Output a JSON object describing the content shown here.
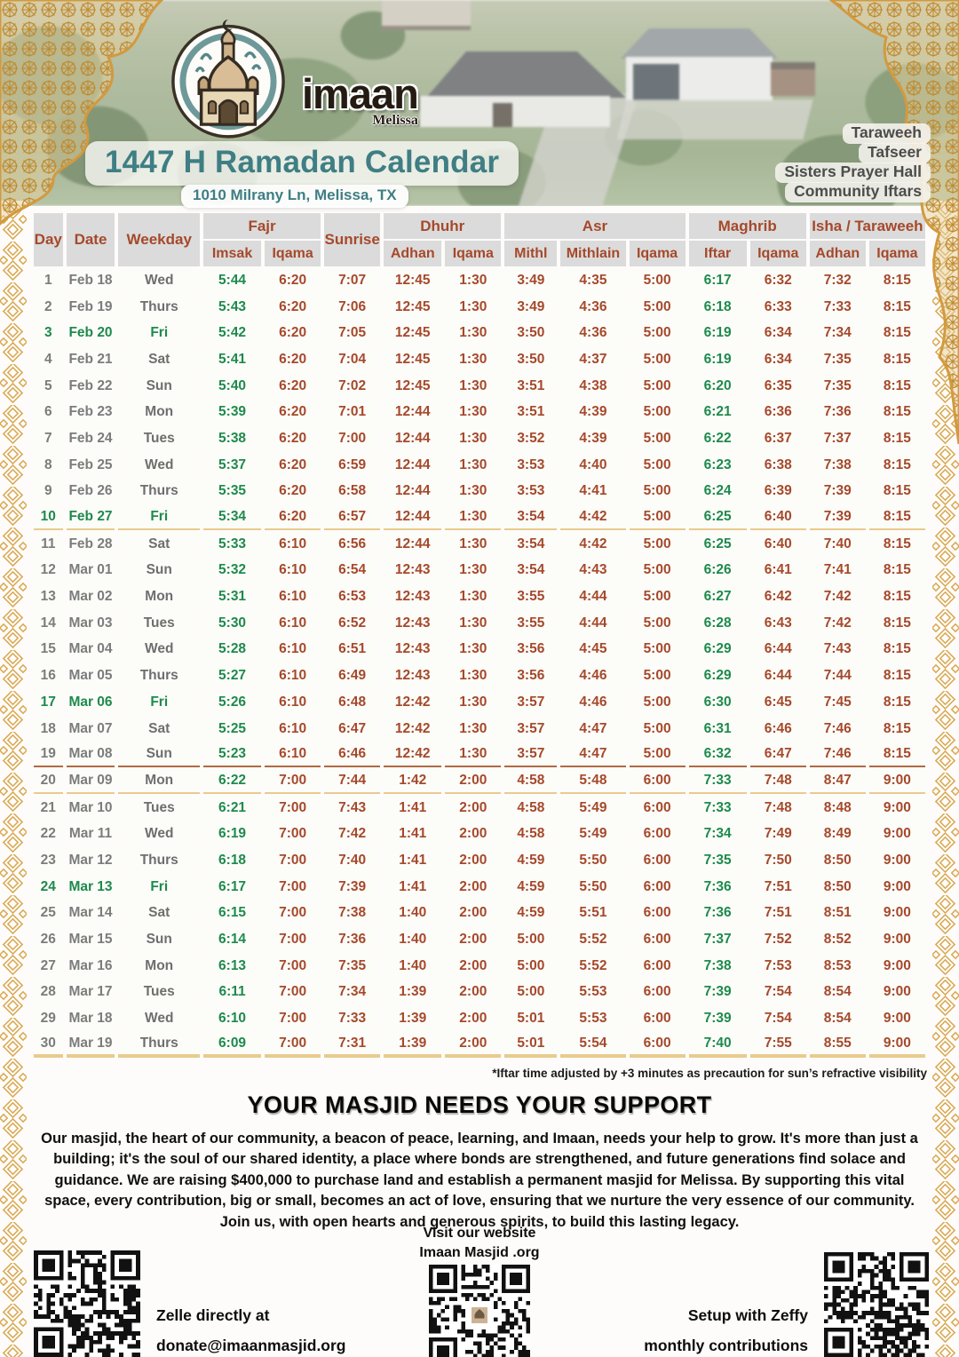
{
  "header": {
    "logo_name": "imaan",
    "logo_sub": "Melissa",
    "title": "1447 H Ramadan Calendar",
    "address": "1010 Milrany Ln, Melissa, TX",
    "tags": [
      "Taraweeh",
      "Tafseer",
      "Sisters Prayer Hall",
      "Community Iftars"
    ]
  },
  "table": {
    "groups": {
      "day": "Day",
      "date": "Date",
      "weekday": "Weekday",
      "fajr": "Fajr",
      "sunrise": "Sunrise",
      "dhuhr": "Dhuhr",
      "asr": "Asr",
      "maghrib": "Maghrib",
      "isha": "Isha / Taraweeh"
    },
    "sub": {
      "imsak": "Imsak",
      "iqama": "Iqama",
      "adhan": "Adhan",
      "mithl": "Mithl",
      "mithlain": "Mithlain",
      "iftar": "Iftar"
    },
    "columns": [
      "day",
      "date",
      "weekday",
      "fajr-imsak",
      "fajr-iqama",
      "sunrise",
      "dhuhr-adhan",
      "dhuhr-iqama",
      "asr-mithl",
      "asr-mithlain",
      "asr-iqama",
      "maghrib-iftar",
      "maghrib-iqama",
      "isha-adhan",
      "isha-iqama"
    ],
    "rows": [
      {
        "day": "1",
        "date": "Feb 18",
        "weekday": "Wed",
        "friday": false,
        "times": [
          "5:44",
          "6:20",
          "7:07",
          "12:45",
          "1:30",
          "3:49",
          "4:35",
          "5:00",
          "6:17",
          "6:32",
          "7:32",
          "8:15"
        ]
      },
      {
        "day": "2",
        "date": "Feb 19",
        "weekday": "Thurs",
        "friday": false,
        "times": [
          "5:43",
          "6:20",
          "7:06",
          "12:45",
          "1:30",
          "3:49",
          "4:36",
          "5:00",
          "6:18",
          "6:33",
          "7:33",
          "8:15"
        ]
      },
      {
        "day": "3",
        "date": "Feb 20",
        "weekday": "Fri",
        "friday": true,
        "times": [
          "5:42",
          "6:20",
          "7:05",
          "12:45",
          "1:30",
          "3:50",
          "4:36",
          "5:00",
          "6:19",
          "6:34",
          "7:34",
          "8:15"
        ]
      },
      {
        "day": "4",
        "date": "Feb 21",
        "weekday": "Sat",
        "friday": false,
        "times": [
          "5:41",
          "6:20",
          "7:04",
          "12:45",
          "1:30",
          "3:50",
          "4:37",
          "5:00",
          "6:19",
          "6:34",
          "7:35",
          "8:15"
        ]
      },
      {
        "day": "5",
        "date": "Feb 22",
        "weekday": "Sun",
        "friday": false,
        "times": [
          "5:40",
          "6:20",
          "7:02",
          "12:45",
          "1:30",
          "3:51",
          "4:38",
          "5:00",
          "6:20",
          "6:35",
          "7:35",
          "8:15"
        ]
      },
      {
        "day": "6",
        "date": "Feb 23",
        "weekday": "Mon",
        "friday": false,
        "times": [
          "5:39",
          "6:20",
          "7:01",
          "12:44",
          "1:30",
          "3:51",
          "4:39",
          "5:00",
          "6:21",
          "6:36",
          "7:36",
          "8:15"
        ]
      },
      {
        "day": "7",
        "date": "Feb 24",
        "weekday": "Tues",
        "friday": false,
        "times": [
          "5:38",
          "6:20",
          "7:00",
          "12:44",
          "1:30",
          "3:52",
          "4:39",
          "5:00",
          "6:22",
          "6:37",
          "7:37",
          "8:15"
        ]
      },
      {
        "day": "8",
        "date": "Feb 25",
        "weekday": "Wed",
        "friday": false,
        "times": [
          "5:37",
          "6:20",
          "6:59",
          "12:44",
          "1:30",
          "3:53",
          "4:40",
          "5:00",
          "6:23",
          "6:38",
          "7:38",
          "8:15"
        ]
      },
      {
        "day": "9",
        "date": "Feb 26",
        "weekday": "Thurs",
        "friday": false,
        "times": [
          "5:35",
          "6:20",
          "6:58",
          "12:44",
          "1:30",
          "3:53",
          "4:41",
          "5:00",
          "6:24",
          "6:39",
          "7:39",
          "8:15"
        ]
      },
      {
        "day": "10",
        "date": "Feb 27",
        "weekday": "Fri",
        "friday": true,
        "sep": "tan",
        "times": [
          "5:34",
          "6:20",
          "6:57",
          "12:44",
          "1:30",
          "3:54",
          "4:42",
          "5:00",
          "6:25",
          "6:40",
          "7:39",
          "8:15"
        ]
      },
      {
        "day": "11",
        "date": "Feb 28",
        "weekday": "Sat",
        "friday": false,
        "times": [
          "5:33",
          "6:10",
          "6:56",
          "12:44",
          "1:30",
          "3:54",
          "4:42",
          "5:00",
          "6:25",
          "6:40",
          "7:40",
          "8:15"
        ]
      },
      {
        "day": "12",
        "date": "Mar 01",
        "weekday": "Sun",
        "friday": false,
        "times": [
          "5:32",
          "6:10",
          "6:54",
          "12:43",
          "1:30",
          "3:54",
          "4:43",
          "5:00",
          "6:26",
          "6:41",
          "7:41",
          "8:15"
        ]
      },
      {
        "day": "13",
        "date": "Mar 02",
        "weekday": "Mon",
        "friday": false,
        "times": [
          "5:31",
          "6:10",
          "6:53",
          "12:43",
          "1:30",
          "3:55",
          "4:44",
          "5:00",
          "6:27",
          "6:42",
          "7:42",
          "8:15"
        ]
      },
      {
        "day": "14",
        "date": "Mar 03",
        "weekday": "Tues",
        "friday": false,
        "times": [
          "5:30",
          "6:10",
          "6:52",
          "12:43",
          "1:30",
          "3:55",
          "4:44",
          "5:00",
          "6:28",
          "6:43",
          "7:42",
          "8:15"
        ]
      },
      {
        "day": "15",
        "date": "Mar 04",
        "weekday": "Wed",
        "friday": false,
        "times": [
          "5:28",
          "6:10",
          "6:51",
          "12:43",
          "1:30",
          "3:56",
          "4:45",
          "5:00",
          "6:29",
          "6:44",
          "7:43",
          "8:15"
        ]
      },
      {
        "day": "16",
        "date": "Mar 05",
        "weekday": "Thurs",
        "friday": false,
        "times": [
          "5:27",
          "6:10",
          "6:49",
          "12:43",
          "1:30",
          "3:56",
          "4:46",
          "5:00",
          "6:29",
          "6:44",
          "7:44",
          "8:15"
        ]
      },
      {
        "day": "17",
        "date": "Mar 06",
        "weekday": "Fri",
        "friday": true,
        "times": [
          "5:26",
          "6:10",
          "6:48",
          "12:42",
          "1:30",
          "3:57",
          "4:46",
          "5:00",
          "6:30",
          "6:45",
          "7:45",
          "8:15"
        ]
      },
      {
        "day": "18",
        "date": "Mar 07",
        "weekday": "Sat",
        "friday": false,
        "times": [
          "5:25",
          "6:10",
          "6:47",
          "12:42",
          "1:30",
          "3:57",
          "4:47",
          "5:00",
          "6:31",
          "6:46",
          "7:46",
          "8:15"
        ]
      },
      {
        "day": "19",
        "date": "Mar 08",
        "weekday": "Sun",
        "friday": false,
        "sep": "dst",
        "times": [
          "5:23",
          "6:10",
          "6:46",
          "12:42",
          "1:30",
          "3:57",
          "4:47",
          "5:00",
          "6:32",
          "6:47",
          "7:46",
          "8:15"
        ]
      },
      {
        "day": "20",
        "date": "Mar 09",
        "weekday": "Mon",
        "friday": false,
        "sep": "tan",
        "times": [
          "6:22",
          "7:00",
          "7:44",
          "1:42",
          "2:00",
          "4:58",
          "5:48",
          "6:00",
          "7:33",
          "7:48",
          "8:47",
          "9:00"
        ]
      },
      {
        "day": "21",
        "date": "Mar 10",
        "weekday": "Tues",
        "friday": false,
        "times": [
          "6:21",
          "7:00",
          "7:43",
          "1:41",
          "2:00",
          "4:58",
          "5:49",
          "6:00",
          "7:33",
          "7:48",
          "8:48",
          "9:00"
        ]
      },
      {
        "day": "22",
        "date": "Mar 11",
        "weekday": "Wed",
        "friday": false,
        "times": [
          "6:19",
          "7:00",
          "7:42",
          "1:41",
          "2:00",
          "4:58",
          "5:49",
          "6:00",
          "7:34",
          "7:49",
          "8:49",
          "9:00"
        ]
      },
      {
        "day": "23",
        "date": "Mar 12",
        "weekday": "Thurs",
        "friday": false,
        "times": [
          "6:18",
          "7:00",
          "7:40",
          "1:41",
          "2:00",
          "4:59",
          "5:50",
          "6:00",
          "7:35",
          "7:50",
          "8:50",
          "9:00"
        ]
      },
      {
        "day": "24",
        "date": "Mar 13",
        "weekday": "Fri",
        "friday": true,
        "times": [
          "6:17",
          "7:00",
          "7:39",
          "1:41",
          "2:00",
          "4:59",
          "5:50",
          "6:00",
          "7:36",
          "7:51",
          "8:50",
          "9:00"
        ]
      },
      {
        "day": "25",
        "date": "Mar 14",
        "weekday": "Sat",
        "friday": false,
        "times": [
          "6:15",
          "7:00",
          "7:38",
          "1:40",
          "2:00",
          "4:59",
          "5:51",
          "6:00",
          "7:36",
          "7:51",
          "8:51",
          "9:00"
        ]
      },
      {
        "day": "26",
        "date": "Mar 15",
        "weekday": "Sun",
        "friday": false,
        "times": [
          "6:14",
          "7:00",
          "7:36",
          "1:40",
          "2:00",
          "5:00",
          "5:52",
          "6:00",
          "7:37",
          "7:52",
          "8:52",
          "9:00"
        ]
      },
      {
        "day": "27",
        "date": "Mar 16",
        "weekday": "Mon",
        "friday": false,
        "times": [
          "6:13",
          "7:00",
          "7:35",
          "1:40",
          "2:00",
          "5:00",
          "5:52",
          "6:00",
          "7:38",
          "7:53",
          "8:53",
          "9:00"
        ]
      },
      {
        "day": "28",
        "date": "Mar 17",
        "weekday": "Tues",
        "friday": false,
        "times": [
          "6:11",
          "7:00",
          "7:34",
          "1:39",
          "2:00",
          "5:00",
          "5:53",
          "6:00",
          "7:39",
          "7:54",
          "8:54",
          "9:00"
        ]
      },
      {
        "day": "29",
        "date": "Mar 18",
        "weekday": "Wed",
        "friday": false,
        "times": [
          "6:10",
          "7:00",
          "7:33",
          "1:39",
          "2:00",
          "5:01",
          "5:53",
          "6:00",
          "7:39",
          "7:54",
          "8:54",
          "9:00"
        ]
      },
      {
        "day": "30",
        "date": "Mar 19",
        "weekday": "Thurs",
        "friday": false,
        "sep": "end",
        "times": [
          "6:09",
          "7:00",
          "7:31",
          "1:39",
          "2:00",
          "5:01",
          "5:54",
          "6:00",
          "7:40",
          "7:55",
          "8:55",
          "9:00"
        ]
      }
    ]
  },
  "footnote": "*Iftar time adjusted by +3 minutes as precaution for sun’s refractive visibility",
  "support": {
    "heading": "YOUR MASJID NEEDS YOUR SUPPORT",
    "body": "Our masjid, the heart of our community, a beacon of peace, learning, and Imaan, needs your help to grow. It's more than just a building; it's the soul of our shared identity, a place where bonds are strengthened, and future generations find solace and guidance. We are raising $400,000 to purchase land and establish a permanent masjid for Melissa. By supporting this vital space, every contribution, big or small, becomes an act of love, ensuring that we nurture the very essence of our community. Join us, with open hearts and generous spirits, to build this lasting legacy."
  },
  "footer": {
    "zelle_line1": "Zelle directly at",
    "zelle_line2": "donate@imaanmasjid.org",
    "site_line1": "Visit our website",
    "site_line2": "Imaan Masjid .org",
    "zeffy_line1": "Setup with Zeffy",
    "zeffy_line2": "monthly contributions"
  },
  "colors": {
    "teal": "#3e7e84",
    "header_cell_bg": "#dbdbdb",
    "brown_red": "#a5492b",
    "green": "#1e8a4c",
    "gray_text": "#7c7c7c",
    "gold_border": "#d9a74f",
    "tan_separator": "#e9cb8e",
    "dst_separator": "#b06a42"
  }
}
